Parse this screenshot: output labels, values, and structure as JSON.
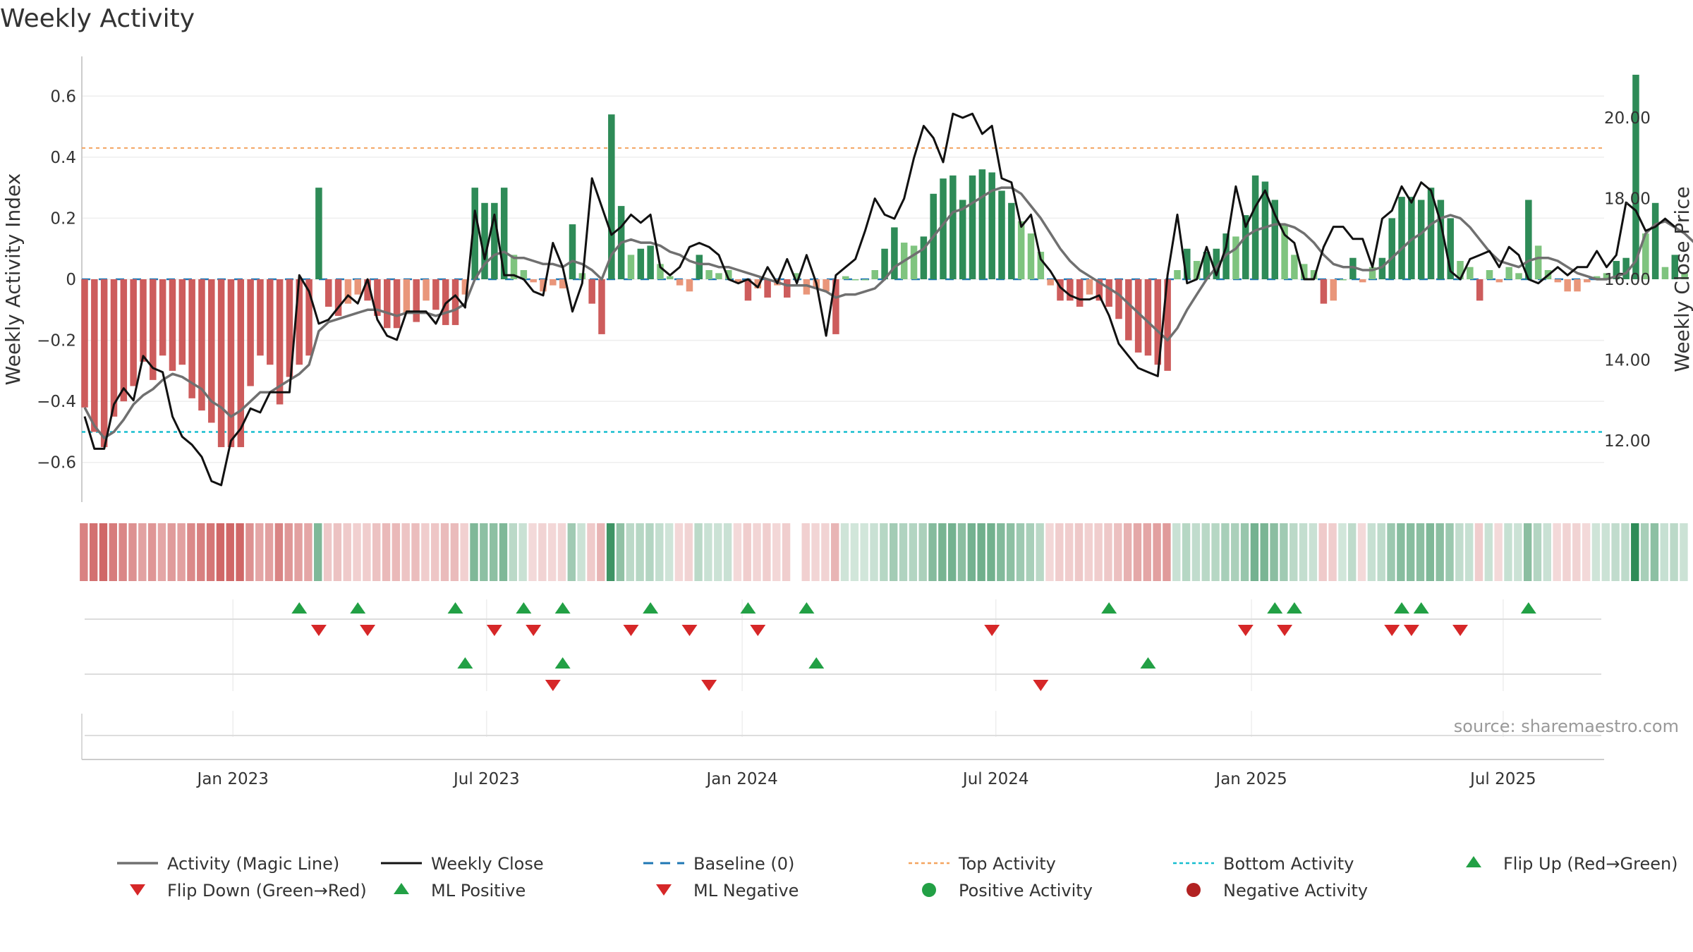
{
  "title": "Weekly Activity",
  "source": "source: sharemaestro.com",
  "colors": {
    "strong_green": "#2e8b57",
    "light_green": "#7fc47f",
    "strong_red": "#cd5c5c",
    "light_red": "#e9967a",
    "magic_line": "#707070",
    "close_line": "#111111",
    "baseline": "#1f77b4",
    "top_line": "#f4a460",
    "bottom_line": "#17becf",
    "flip_up": "#22a045",
    "flip_down": "#d62728",
    "pos_dot": "#22a045",
    "neg_dot": "#b22222"
  },
  "chart_data": {
    "type": "bar",
    "title": "Weekly Activity",
    "ylabel": "Weekly Activity Index",
    "y2label": "Weekly Close Price",
    "ylim": [
      -0.73,
      0.73
    ],
    "y2lim": [
      10.48,
      21.52
    ],
    "yticks": [
      0.6,
      0.4,
      0.2,
      0,
      -0.2,
      -0.4,
      -0.6
    ],
    "yticklabels": [
      "0.6",
      "0.4",
      "0.2",
      "0",
      "−0.2",
      "−0.4",
      "−0.6"
    ],
    "y2ticks": [
      20,
      18,
      16,
      14,
      12
    ],
    "y2ticklabels": [
      "20.00",
      "18.00",
      "16.00",
      "14.00",
      "12.00"
    ],
    "week_start": 0,
    "week_end": 157,
    "x_ticks": [
      {
        "label": "Jan 2023",
        "week": 15.2
      },
      {
        "label": "Jul 2023",
        "week": 41.2
      },
      {
        "label": "Jan 2024",
        "week": 67.4
      },
      {
        "label": "Jul 2024",
        "week": 93.4
      },
      {
        "label": "Jan 2025",
        "week": 119.6
      },
      {
        "label": "Jul 2025",
        "week": 145.4
      }
    ],
    "top_activity": 0.43,
    "bottom_activity": -0.5,
    "activity": [
      -0.42,
      -0.5,
      -0.55,
      -0.45,
      -0.4,
      -0.35,
      -0.27,
      -0.33,
      -0.25,
      -0.3,
      -0.28,
      -0.39,
      -0.43,
      -0.47,
      -0.55,
      -0.55,
      -0.55,
      -0.35,
      -0.25,
      -0.28,
      -0.41,
      -0.32,
      -0.28,
      -0.25,
      0.3,
      -0.09,
      -0.12,
      -0.08,
      -0.05,
      -0.07,
      -0.12,
      -0.16,
      -0.16,
      -0.11,
      -0.14,
      -0.07,
      -0.1,
      -0.15,
      -0.15,
      -0.05,
      0.3,
      0.25,
      0.25,
      0.3,
      0.08,
      0.03,
      -0.01,
      -0.04,
      -0.02,
      -0.03,
      0.18,
      0.02,
      -0.08,
      -0.18,
      0.54,
      0.24,
      0.08,
      0.1,
      0.11,
      0.05,
      0.01,
      -0.02,
      -0.04,
      0.08,
      0.03,
      0.02,
      0.03,
      -0.01,
      -0.07,
      -0.03,
      -0.06,
      -0.02,
      -0.06,
      0.02,
      -0.05,
      -0.03,
      -0.04,
      -0.18,
      0.01,
      0,
      0,
      0.03,
      0.1,
      0.17,
      0.12,
      0.11,
      0.14,
      0.28,
      0.33,
      0.34,
      0.26,
      0.34,
      0.36,
      0.35,
      0.29,
      0.25,
      0.19,
      0.15,
      0.09,
      -0.02,
      -0.07,
      -0.07,
      -0.09,
      -0.05,
      -0.07,
      -0.09,
      -0.13,
      -0.2,
      -0.24,
      -0.25,
      -0.28,
      -0.3,
      0.03,
      0.1,
      0.06,
      0.09,
      0.1,
      0.15,
      0.14,
      0.21,
      0.34,
      0.32,
      0.26,
      0.18,
      0.08,
      0.05,
      0.03,
      -0.08,
      -0.07,
      0,
      0.07,
      -0.01,
      0.04,
      0.07,
      0.2,
      0.27,
      0.27,
      0.26,
      0.3,
      0.26,
      0.2,
      0.06,
      0.04,
      -0.07,
      0.03,
      -0.01,
      0.04,
      0.02,
      0.26,
      0.11,
      0.03,
      -0.01,
      -0.04,
      -0.04,
      -0.01,
      0.01,
      0.02,
      0.06,
      0.07,
      0.67,
      0.15,
      0.25,
      0.04,
      0.08,
      0.02
    ],
    "magic_line": [
      -0.42,
      -0.48,
      -0.52,
      -0.5,
      -0.46,
      -0.41,
      -0.38,
      -0.36,
      -0.33,
      -0.31,
      -0.32,
      -0.34,
      -0.36,
      -0.4,
      -0.42,
      -0.45,
      -0.43,
      -0.4,
      -0.37,
      -0.37,
      -0.35,
      -0.33,
      -0.31,
      -0.28,
      -0.17,
      -0.14,
      -0.13,
      -0.12,
      -0.11,
      -0.1,
      -0.1,
      -0.11,
      -0.12,
      -0.11,
      -0.11,
      -0.11,
      -0.12,
      -0.11,
      -0.1,
      -0.08,
      0.0,
      0.05,
      0.08,
      0.09,
      0.07,
      0.07,
      0.06,
      0.05,
      0.05,
      0.04,
      0.06,
      0.05,
      0.03,
      0.0,
      0.08,
      0.12,
      0.13,
      0.12,
      0.12,
      0.11,
      0.09,
      0.08,
      0.06,
      0.05,
      0.05,
      0.04,
      0.04,
      0.03,
      0.02,
      0.01,
      0.0,
      -0.01,
      -0.02,
      -0.02,
      -0.02,
      -0.03,
      -0.04,
      -0.06,
      -0.05,
      -0.05,
      -0.04,
      -0.03,
      0.0,
      0.04,
      0.06,
      0.08,
      0.1,
      0.14,
      0.18,
      0.22,
      0.23,
      0.25,
      0.27,
      0.29,
      0.3,
      0.3,
      0.28,
      0.24,
      0.2,
      0.15,
      0.1,
      0.06,
      0.03,
      0.01,
      -0.01,
      -0.03,
      -0.05,
      -0.08,
      -0.11,
      -0.14,
      -0.17,
      -0.2,
      -0.16,
      -0.1,
      -0.05,
      0.0,
      0.04,
      0.08,
      0.1,
      0.14,
      0.16,
      0.17,
      0.18,
      0.18,
      0.17,
      0.15,
      0.12,
      0.08,
      0.05,
      0.04,
      0.04,
      0.03,
      0.03,
      0.04,
      0.07,
      0.1,
      0.13,
      0.15,
      0.18,
      0.2,
      0.21,
      0.2,
      0.17,
      0.13,
      0.09,
      0.06,
      0.05,
      0.04,
      0.06,
      0.07,
      0.07,
      0.06,
      0.04,
      0.02,
      0.01,
      0.0,
      0.0,
      0.01,
      0.02,
      0.06,
      0.15,
      0.18,
      0.19,
      0.17,
      0.15,
      0.12
    ],
    "weekly_close": [
      12.6,
      11.8,
      11.8,
      12.9,
      13.3,
      13.0,
      14.1,
      13.8,
      13.7,
      12.6,
      12.1,
      11.9,
      11.6,
      11.0,
      10.9,
      12.0,
      12.3,
      12.8,
      12.7,
      13.2,
      13.2,
      13.2,
      16.1,
      15.7,
      14.9,
      15.0,
      15.3,
      15.6,
      15.4,
      16.0,
      15.0,
      14.6,
      14.5,
      15.2,
      15.2,
      15.2,
      14.9,
      15.4,
      15.6,
      15.3,
      17.7,
      16.5,
      17.6,
      16.1,
      16.1,
      16.0,
      15.7,
      15.6,
      16.9,
      16.3,
      15.2,
      15.9,
      18.5,
      17.8,
      17.1,
      17.3,
      17.6,
      17.4,
      17.6,
      16.3,
      16.1,
      16.3,
      16.8,
      16.9,
      16.8,
      16.6,
      16.0,
      15.9,
      16.0,
      15.8,
      16.3,
      15.9,
      16.5,
      15.9,
      16.6,
      15.9,
      14.6,
      16.1,
      16.3,
      16.5,
      17.2,
      18.0,
      17.6,
      17.5,
      18.0,
      19.0,
      19.8,
      19.5,
      18.9,
      20.1,
      20.0,
      20.1,
      19.6,
      19.8,
      18.5,
      18.4,
      17.3,
      17.6,
      16.5,
      16.2,
      15.8,
      15.6,
      15.5,
      15.5,
      15.6,
      15.1,
      14.4,
      14.1,
      13.8,
      13.7,
      13.6,
      16.1,
      17.6,
      15.9,
      16.0,
      16.8,
      16.1,
      16.8,
      18.3,
      17.3,
      17.8,
      18.2,
      17.6,
      17.1,
      16.9,
      16.0,
      16.0,
      16.8,
      17.3,
      17.3,
      17.0,
      17.0,
      16.3,
      17.5,
      17.7,
      18.3,
      17.9,
      18.4,
      18.2,
      17.4,
      16.2,
      16.0,
      16.5,
      16.6,
      16.7,
      16.3,
      16.8,
      16.6,
      16.0,
      15.9,
      16.1,
      16.3,
      16.1,
      16.3,
      16.3,
      16.7,
      16.3,
      16.6,
      17.9,
      17.7,
      17.2,
      17.3,
      17.5,
      17.3
    ],
    "activity_strip_gap_weeks": [
      73
    ],
    "flip_up_weeks": [
      22,
      28,
      38,
      45,
      49,
      58,
      68,
      74,
      105,
      122,
      124,
      135,
      137,
      148
    ],
    "flip_down_weeks": [
      24,
      29,
      42,
      46,
      56,
      62,
      69,
      93,
      119,
      123,
      134,
      136,
      141
    ],
    "ml_positive_weeks": [
      39,
      49,
      75,
      109
    ],
    "ml_negative_weeks": [
      48,
      64,
      98
    ]
  },
  "legend": [
    {
      "label": "Activity (Magic Line)",
      "kind": "line-gray"
    },
    {
      "label": "Weekly Close",
      "kind": "line-black"
    },
    {
      "label": "Baseline (0)",
      "kind": "dash-blue"
    },
    {
      "label": "Top Activity",
      "kind": "dot-orange"
    },
    {
      "label": "Bottom Activity",
      "kind": "dot-cyan"
    },
    {
      "label": "Flip Up (Red→Green)",
      "kind": "tri-up"
    },
    {
      "label": "Flip Down (Green→Red)",
      "kind": "tri-down"
    },
    {
      "label": "ML Positive",
      "kind": "tri-up"
    },
    {
      "label": "ML Negative",
      "kind": "tri-down"
    },
    {
      "label": "Positive Activity",
      "kind": "dot-green"
    },
    {
      "label": "Negative Activity",
      "kind": "dot-red"
    }
  ]
}
